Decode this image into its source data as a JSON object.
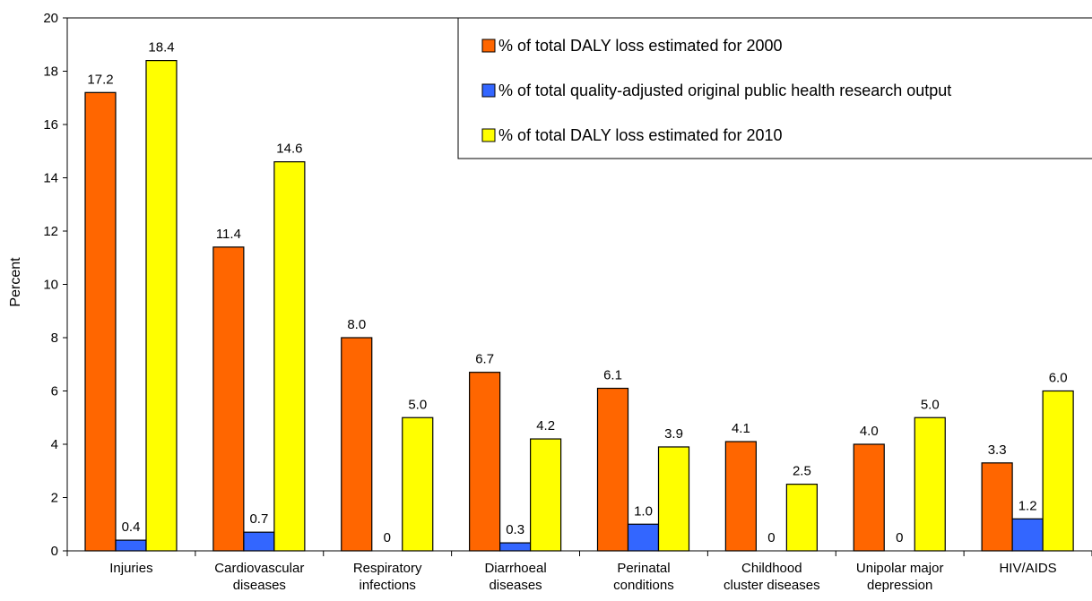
{
  "chart_data": {
    "type": "bar",
    "title": "",
    "xlabel": "",
    "ylabel": "Percent",
    "ylim": [
      0,
      20
    ],
    "yticks": [
      0,
      2,
      4,
      6,
      8,
      10,
      12,
      14,
      16,
      18,
      20
    ],
    "grid": false,
    "legend_position": "top-right",
    "categories": [
      [
        "Injuries"
      ],
      [
        "Cardiovascular",
        "diseases"
      ],
      [
        "Respiratory",
        "infections"
      ],
      [
        "Diarrhoeal",
        "diseases"
      ],
      [
        "Perinatal",
        "conditions"
      ],
      [
        "Childhood",
        "cluster diseases"
      ],
      [
        "Unipolar major",
        "depression"
      ],
      [
        "HIV/AIDS"
      ]
    ],
    "series": [
      {
        "name": "% of total DALY loss estimated for 2000",
        "color": "#FF6600",
        "values": [
          17.2,
          11.4,
          8.0,
          6.7,
          6.1,
          4.1,
          4.0,
          3.3
        ],
        "labels": [
          "17.2",
          "11.4",
          "8.0",
          "6.7",
          "6.1",
          "4.1",
          "4.0",
          "3.3"
        ]
      },
      {
        "name": "% of total quality-adjusted original public health research output",
        "color": "#3366FF",
        "values": [
          0.4,
          0.7,
          0,
          0.3,
          1.0,
          0,
          0,
          1.2
        ],
        "labels": [
          "0.4",
          "0.7",
          "0",
          "0.3",
          "1.0",
          "0",
          "0",
          "1.2"
        ]
      },
      {
        "name": "% of total DALY loss estimated for 2010",
        "color": "#FFFF00",
        "values": [
          18.4,
          14.6,
          5.0,
          4.2,
          3.9,
          2.5,
          5.0,
          6.0
        ],
        "labels": [
          "18.4",
          "14.6",
          "5.0",
          "4.2",
          "3.9",
          "2.5",
          "5.0",
          "6.0"
        ]
      }
    ]
  }
}
